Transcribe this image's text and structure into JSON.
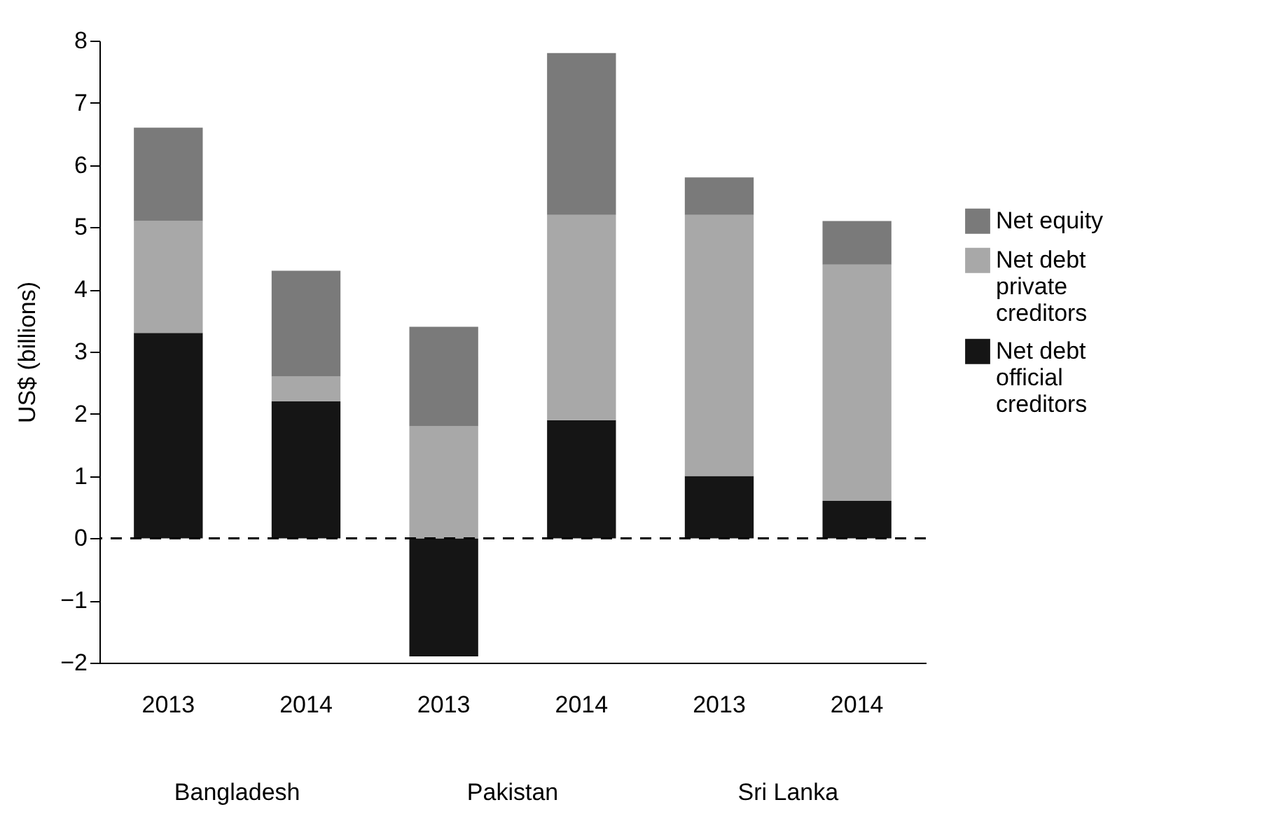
{
  "chart_data": {
    "type": "bar",
    "stacked": true,
    "ylabel": "US$ (billions)",
    "categories": [
      "2013",
      "2014",
      "2013",
      "2014",
      "2013",
      "2014"
    ],
    "series": [
      {
        "name": "Net debt official creditors",
        "color": "#151515",
        "values": [
          3.3,
          2.2,
          -1.9,
          1.9,
          1.0,
          0.6
        ]
      },
      {
        "name": "Net debt private creditors",
        "color": "#a8a8a8",
        "values": [
          1.8,
          0.4,
          1.8,
          3.3,
          4.2,
          3.8
        ]
      },
      {
        "name": "Net equity",
        "color": "#7a7a7a",
        "values": [
          1.5,
          1.7,
          1.6,
          2.6,
          0.6,
          0.7
        ]
      }
    ],
    "ylim": [
      -2,
      8
    ],
    "yticks": [
      {
        "value": -2,
        "label": "−2"
      },
      {
        "value": -1,
        "label": "−1"
      },
      0,
      1,
      2,
      3,
      4,
      5,
      6,
      7,
      8
    ],
    "ref_lines": [
      {
        "axis": "y",
        "value": 0,
        "color": "#000000",
        "line_style": "dashed"
      }
    ],
    "annotations": [
      "Bangladesh",
      "Pakistan",
      "Sri Lanka"
    ],
    "legend": "right",
    "grid": false
  }
}
